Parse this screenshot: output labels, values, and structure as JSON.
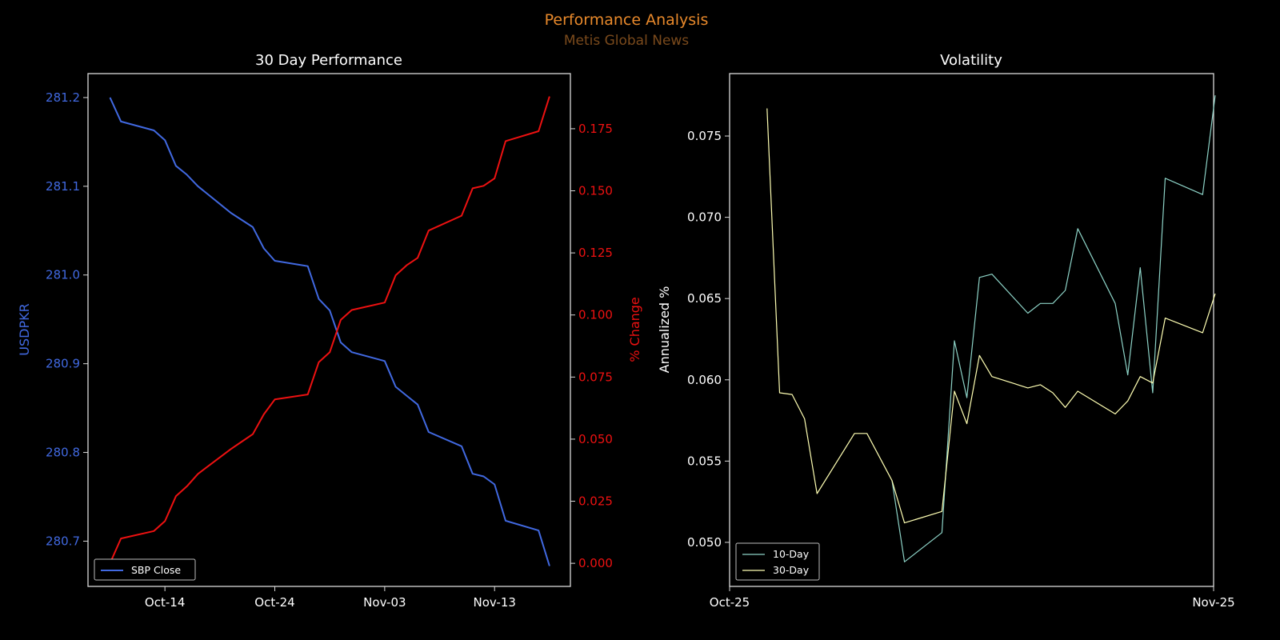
{
  "suptitle": "Performance Analysis",
  "watermark": "Metis Global News",
  "colors": {
    "blue": "#4169e1",
    "red": "#ee1111",
    "ten_day": "#8dd3c7",
    "thirty_day": "#ffffb3",
    "title": "#e8892b",
    "watermark": "#7a4a1c",
    "axes": "#d9d9d9"
  },
  "chart_data": [
    {
      "type": "line",
      "title": "30 Day Performance",
      "xlabel": "",
      "ylabel": "USDPKR",
      "ylabel_right": "% Change",
      "x_unit": "days since Oct-14",
      "xlim": [
        -7.0,
        36.9
      ],
      "xticks": [
        {
          "x": 0,
          "label": "Oct-14"
        },
        {
          "x": 10,
          "label": "Oct-24"
        },
        {
          "x": 20,
          "label": "Nov-03"
        },
        {
          "x": 30,
          "label": "Nov-13"
        }
      ],
      "ylim": [
        280.649,
        281.227
      ],
      "yticks": [
        "280.7",
        "280.8",
        "280.9",
        "281.0",
        "281.1",
        "281.2"
      ],
      "ylim_right": [
        -0.0093,
        0.1972
      ],
      "yticks_right": [
        "0.000",
        "0.025",
        "0.050",
        "0.075",
        "0.100",
        "0.125",
        "0.150",
        "0.175"
      ],
      "x": [
        -5,
        -4,
        -1,
        0,
        1,
        2,
        3,
        6,
        7,
        8,
        9,
        10,
        13,
        14,
        15,
        16,
        17,
        20,
        21,
        22,
        23,
        24,
        27,
        28,
        29,
        30,
        31,
        34,
        35
      ],
      "series": [
        {
          "name": "SBP Close",
          "axis": "left",
          "values": [
            281.2,
            281.173,
            281.163,
            281.152,
            281.123,
            281.113,
            281.1,
            281.07,
            281.062,
            281.054,
            281.03,
            281.016,
            281.01,
            280.973,
            280.96,
            280.924,
            280.913,
            280.903,
            280.874,
            280.864,
            280.854,
            280.823,
            280.807,
            280.776,
            280.773,
            280.764,
            280.723,
            280.712,
            280.672
          ]
        },
        {
          "name": "% Change",
          "axis": "right",
          "values": [
            0.0,
            0.01,
            0.013,
            0.017,
            0.027,
            0.031,
            0.036,
            0.046,
            0.049,
            0.052,
            0.06,
            0.066,
            0.068,
            0.081,
            0.085,
            0.098,
            0.102,
            0.105,
            0.116,
            0.12,
            0.123,
            0.134,
            0.14,
            0.151,
            0.152,
            0.155,
            0.17,
            0.174,
            0.188
          ]
        }
      ],
      "legend": {
        "position": "lower-left",
        "entries": [
          "SBP Close"
        ]
      }
    },
    {
      "type": "line",
      "title": "Volatility",
      "xlabel": "",
      "ylabel": "Annualized %",
      "x_unit": "days since Oct-25",
      "xlim": [
        0,
        31
      ],
      "xticks": [
        {
          "x": 0,
          "label": "Oct-25"
        },
        {
          "x": 31,
          "label": "Nov-25"
        }
      ],
      "ylim": [
        0.04729,
        0.07884
      ],
      "yticks": [
        "0.050",
        "0.055",
        "0.060",
        "0.065",
        "0.070",
        "0.075"
      ],
      "series": [
        {
          "name": "10-Day",
          "x": [
            10.4,
            11.2,
            13.6,
            14.4,
            15.2,
            16.0,
            16.8,
            19.1,
            19.9,
            20.7,
            21.5,
            22.3,
            24.7,
            25.5,
            26.3,
            27.1,
            27.9,
            30.3,
            31.1
          ],
          "values": [
            0.0538,
            0.0488,
            0.0506,
            0.0624,
            0.0589,
            0.0663,
            0.0665,
            0.0641,
            0.0647,
            0.0647,
            0.0655,
            0.0693,
            0.0647,
            0.0603,
            0.0669,
            0.0592,
            0.0724,
            0.0714,
            0.0775
          ]
        },
        {
          "name": "30-Day",
          "x": [
            2.4,
            3.2,
            4.0,
            4.8,
            5.6,
            8.0,
            8.8,
            10.4,
            11.2,
            13.6,
            14.4,
            15.2,
            16.0,
            16.8,
            19.1,
            19.9,
            20.7,
            21.5,
            22.3,
            24.7,
            25.5,
            26.3,
            27.1,
            27.9,
            30.3,
            31.1
          ],
          "values": [
            0.0767,
            0.0592,
            0.0591,
            0.0576,
            0.053,
            0.0567,
            0.0567,
            0.0538,
            0.0512,
            0.0519,
            0.0593,
            0.0573,
            0.0615,
            0.0602,
            0.0595,
            0.0597,
            0.0592,
            0.0583,
            0.0593,
            0.0579,
            0.0587,
            0.0602,
            0.0598,
            0.0638,
            0.0629,
            0.0653
          ]
        }
      ],
      "legend": {
        "position": "lower-left",
        "entries": [
          "10-Day",
          "30-Day"
        ]
      }
    }
  ]
}
